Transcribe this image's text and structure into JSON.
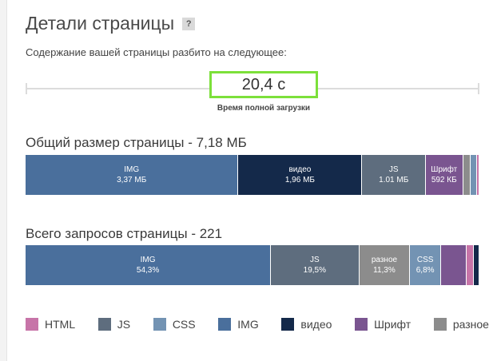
{
  "header": {
    "title": "Детали страницы",
    "help": "?",
    "subtitle": "Содержание вашей страницы разбито на следующее:"
  },
  "load_time": {
    "value": "20,4 с",
    "label": "Время полной загрузки"
  },
  "size_section": {
    "title": "Общий размер страницы - 7,18 МБ",
    "segments": [
      {
        "type": "img",
        "label": "IMG",
        "value": "3,37 МБ",
        "share": 46.9
      },
      {
        "type": "video",
        "label": "видео",
        "value": "1,96 МБ",
        "share": 27.3
      },
      {
        "type": "js",
        "label": "JS",
        "value": "1.01 МБ",
        "share": 14.0
      },
      {
        "type": "font",
        "label": "Шрифт",
        "value": "592 КБ",
        "share": 8.2
      },
      {
        "type": "misc",
        "label": "",
        "value": "",
        "share": 1.6
      },
      {
        "type": "css",
        "label": "",
        "value": "",
        "share": 1.4
      },
      {
        "type": "html",
        "label": "",
        "value": "",
        "share": 0.6
      }
    ]
  },
  "requests_section": {
    "title": "Всего запросов страницы - 221",
    "segments": [
      {
        "type": "img",
        "label": "IMG",
        "value": "54,3%",
        "share": 54.3
      },
      {
        "type": "js",
        "label": "JS",
        "value": "19,5%",
        "share": 19.5
      },
      {
        "type": "misc",
        "label": "разное",
        "value": "11,3%",
        "share": 11.3
      },
      {
        "type": "css",
        "label": "CSS",
        "value": "6,8%",
        "share": 6.8
      },
      {
        "type": "font",
        "label": "",
        "value": "",
        "share": 5.6
      },
      {
        "type": "html",
        "label": "",
        "value": "",
        "share": 1.6
      },
      {
        "type": "video",
        "label": "",
        "value": "",
        "share": 1.3
      }
    ]
  },
  "colors": {
    "html": "#c774a8",
    "js": "#5e6d7e",
    "css": "#7393b3",
    "img": "#4a6f9c",
    "video": "#14294a",
    "font": "#7a5590",
    "misc": "#8c8c8c"
  },
  "legend": [
    {
      "type": "html",
      "label": "HTML"
    },
    {
      "type": "js",
      "label": "JS"
    },
    {
      "type": "css",
      "label": "CSS"
    },
    {
      "type": "img",
      "label": "IMG"
    },
    {
      "type": "video",
      "label": "видео"
    },
    {
      "type": "font",
      "label": "Шрифт"
    },
    {
      "type": "misc",
      "label": "разное"
    }
  ]
}
